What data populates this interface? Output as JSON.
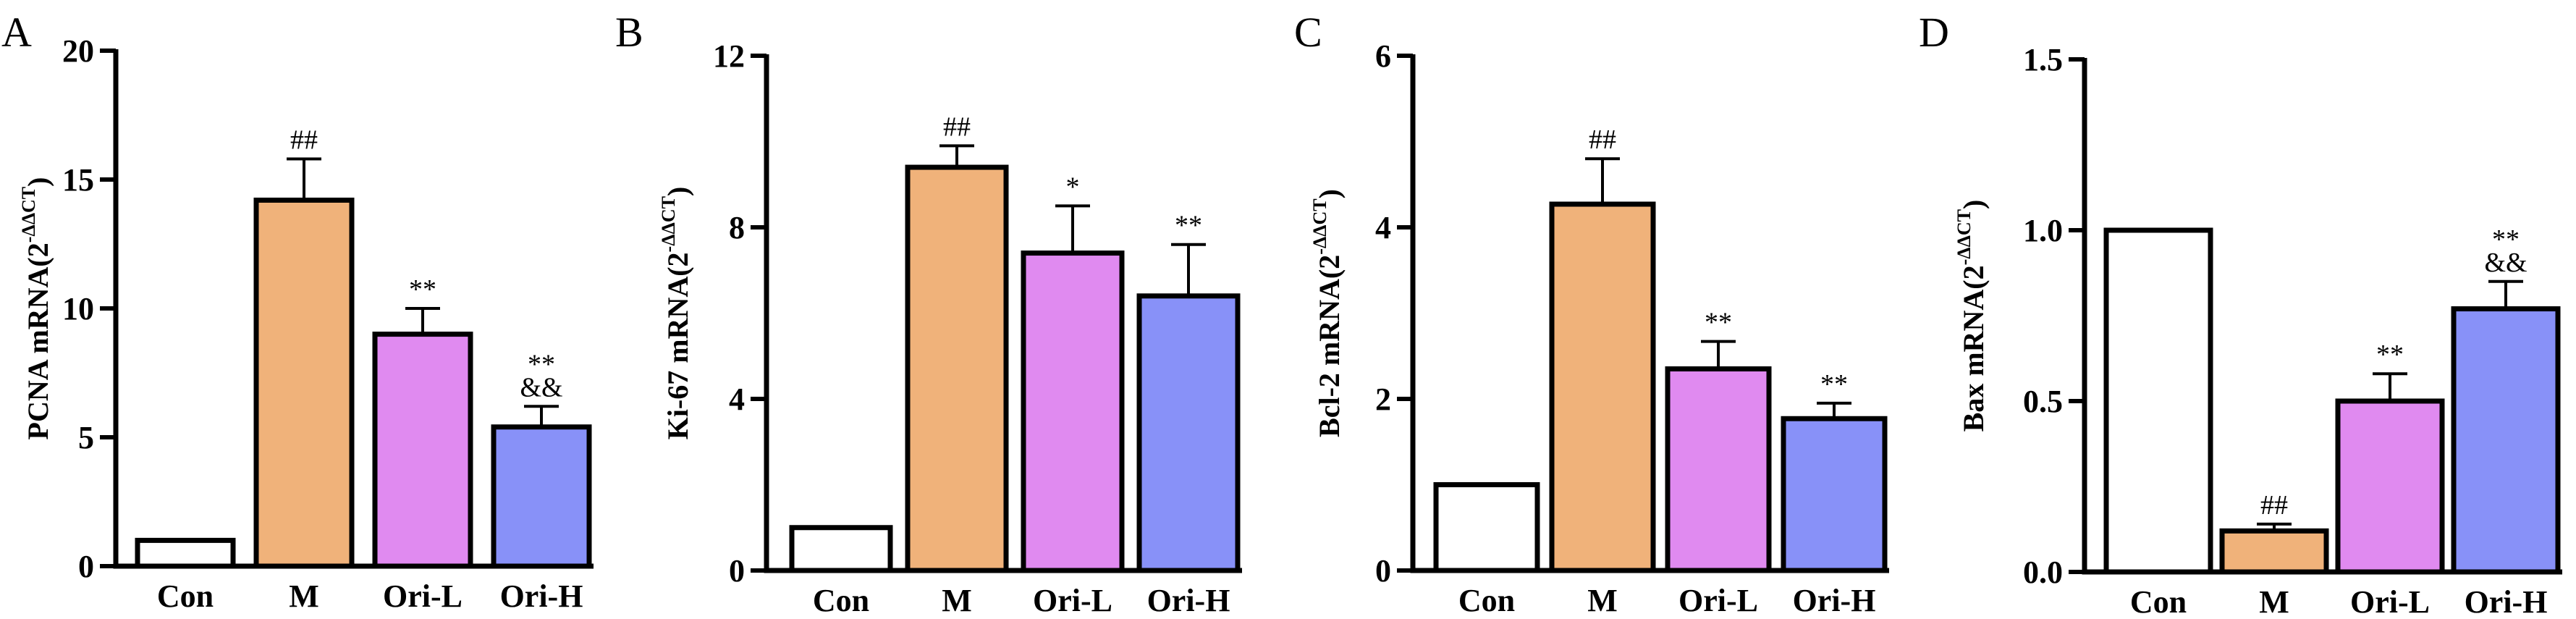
{
  "figure": {
    "colors": {
      "Con": "#ffffff",
      "M": "#f0b27a",
      "Ori-L": "#e08af0",
      "Ori-H": "#8891f8",
      "stroke": "#000000"
    }
  },
  "chart_data": [
    {
      "panel": "A",
      "type": "bar",
      "categories": [
        "Con",
        "M",
        "Ori-L",
        "Ori-H"
      ],
      "values": [
        1.0,
        14.2,
        9.0,
        5.4
      ],
      "errors": [
        0,
        1.6,
        1.0,
        0.8
      ],
      "annotations": [
        [],
        [
          "##"
        ],
        [
          "**"
        ],
        [
          "&&",
          "**"
        ]
      ],
      "ylabel": "PCNA mRNA(2",
      "ylabel_sup": "-ΔΔCT",
      "ylabel_close": ")",
      "ylim": [
        0,
        20
      ],
      "yticks": [
        0,
        5,
        10,
        15,
        20
      ],
      "ytick_labels": [
        "0",
        "5",
        "10",
        "15",
        "20"
      ]
    },
    {
      "panel": "B",
      "type": "bar",
      "categories": [
        "Con",
        "M",
        "Ori-L",
        "Ori-H"
      ],
      "values": [
        1.0,
        9.4,
        7.4,
        6.4
      ],
      "errors": [
        0,
        0.5,
        1.1,
        1.2
      ],
      "annotations": [
        [],
        [
          "##"
        ],
        [
          "*"
        ],
        [
          "**"
        ]
      ],
      "ylabel": "Ki-67 mRNA(2",
      "ylabel_sup": "-ΔΔCT",
      "ylabel_close": ")",
      "ylim": [
        0,
        12
      ],
      "yticks": [
        0,
        4,
        8,
        12
      ],
      "ytick_labels": [
        "0",
        "4",
        "8",
        "12"
      ]
    },
    {
      "panel": "C",
      "type": "bar",
      "categories": [
        "Con",
        "M",
        "Ori-L",
        "Ori-H"
      ],
      "values": [
        1.0,
        4.27,
        2.35,
        1.77
      ],
      "errors": [
        0,
        0.53,
        0.32,
        0.18
      ],
      "annotations": [
        [],
        [
          "##"
        ],
        [
          "**"
        ],
        [
          "**"
        ]
      ],
      "ylabel": "Bcl-2 mRNA(2",
      "ylabel_sup": "-ΔΔCT",
      "ylabel_close": ")",
      "ylim": [
        0,
        6
      ],
      "yticks": [
        0,
        2,
        4,
        6
      ],
      "ytick_labels": [
        "0",
        "2",
        "4",
        "6"
      ]
    },
    {
      "panel": "D",
      "type": "bar",
      "categories": [
        "Con",
        "M",
        "Ori-L",
        "Ori-H"
      ],
      "values": [
        1.0,
        0.12,
        0.5,
        0.77
      ],
      "errors": [
        0,
        0.02,
        0.08,
        0.08
      ],
      "annotations": [
        [],
        [
          "##"
        ],
        [
          "**"
        ],
        [
          "&&",
          "**"
        ]
      ],
      "ylabel": "Bax mRNA(2",
      "ylabel_sup": "-ΔΔCT",
      "ylabel_close": ")",
      "ylim": [
        0,
        1.5
      ],
      "yticks": [
        0,
        0.5,
        1.0,
        1.5
      ],
      "ytick_labels": [
        "0.0",
        "0.5",
        "1.0",
        "1.5"
      ]
    }
  ]
}
